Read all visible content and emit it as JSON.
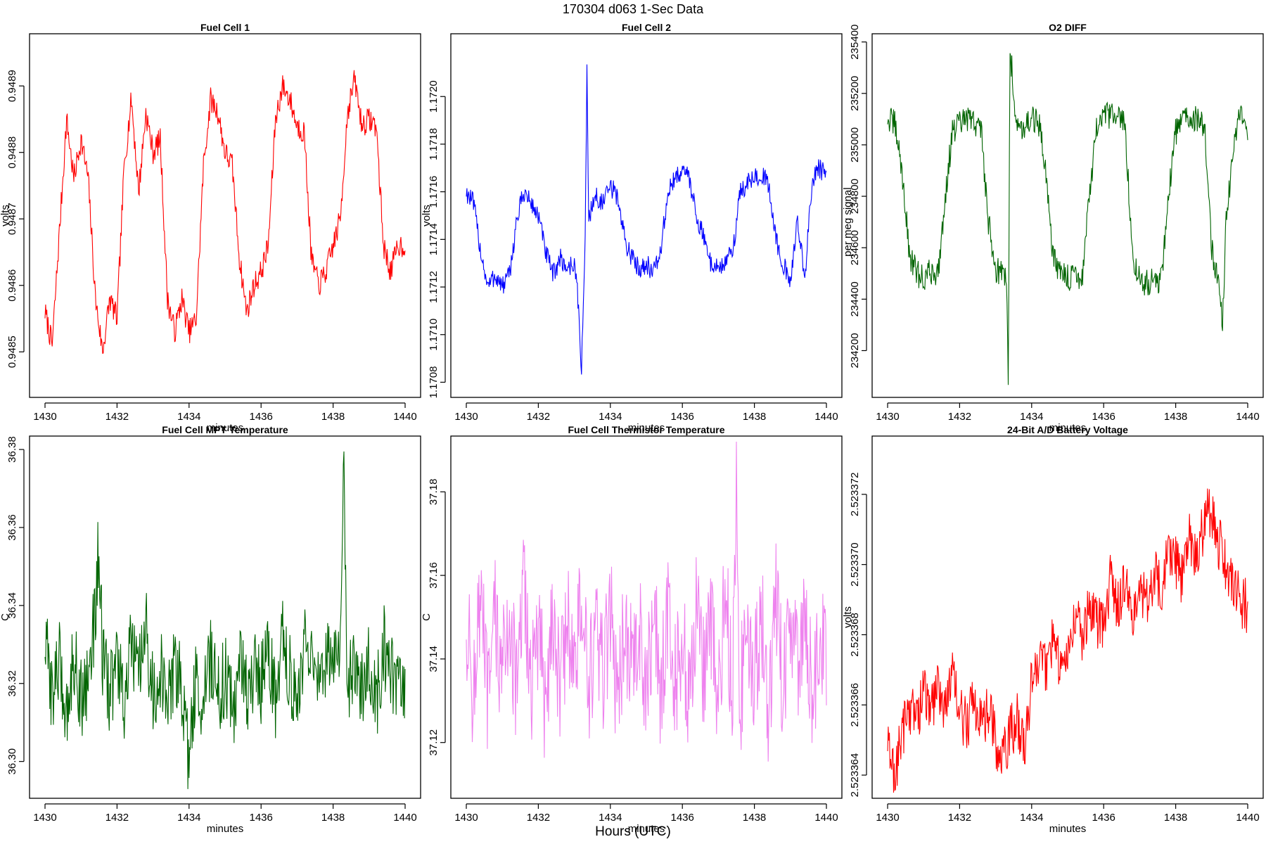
{
  "page": {
    "title": "170304   d063   1-Sec Data",
    "outer_xlabel": "Hours (UTC)"
  },
  "chart_data": [
    {
      "type": "line",
      "title": "Fuel Cell 1",
      "xlabel": "minutes",
      "ylabel": "volts",
      "color": "#ff0000",
      "xlim": [
        1430,
        1440
      ],
      "ylim": [
        0.94844,
        0.94897
      ],
      "xticks": [
        "1430",
        "1432",
        "1434",
        "1436",
        "1438",
        "1440"
      ],
      "yticks": [
        {
          "value": 0.9485,
          "label": "0.9485"
        },
        {
          "value": 0.9486,
          "label": "0.9486"
        },
        {
          "value": 0.9487,
          "label": "0.9487"
        },
        {
          "value": 0.9488,
          "label": "0.9488"
        },
        {
          "value": 0.9489,
          "label": "0.9489"
        }
      ],
      "series": [
        {
          "x": [
            1430.0,
            1430.2,
            1430.4,
            1430.6,
            1430.8,
            1431.0,
            1431.2,
            1431.4,
            1431.6,
            1431.8,
            1432.0,
            1432.2,
            1432.4,
            1432.6,
            1432.8,
            1433.0,
            1433.2,
            1433.4,
            1433.6,
            1433.8,
            1434.0,
            1434.2,
            1434.4,
            1434.6,
            1434.8,
            1435.0,
            1435.2,
            1435.4,
            1435.6,
            1435.8,
            1436.0,
            1436.2,
            1436.4,
            1436.6,
            1436.8,
            1437.0,
            1437.2,
            1437.4,
            1437.6,
            1437.8,
            1438.0,
            1438.2,
            1438.4,
            1438.6,
            1438.8,
            1439.0,
            1439.2,
            1439.4,
            1439.6,
            1439.8,
            1440.0
          ],
          "y": [
            0.94856,
            0.94851,
            0.94868,
            0.94885,
            0.94876,
            0.94882,
            0.94876,
            0.94858,
            0.9485,
            0.94858,
            0.94855,
            0.94878,
            0.94888,
            0.94874,
            0.94886,
            0.9488,
            0.94882,
            0.94858,
            0.94853,
            0.94858,
            0.94853,
            0.94855,
            0.94878,
            0.94888,
            0.94886,
            0.9488,
            0.94878,
            0.94864,
            0.94856,
            0.9486,
            0.94862,
            0.94866,
            0.94885,
            0.9489,
            0.94888,
            0.94884,
            0.94883,
            0.94864,
            0.9486,
            0.94862,
            0.94866,
            0.9487,
            0.94886,
            0.94891,
            0.94884,
            0.94885,
            0.94884,
            0.94866,
            0.94862,
            0.94866,
            0.94866
          ]
        }
      ]
    },
    {
      "type": "line",
      "title": "Fuel Cell 2",
      "xlabel": "minutes",
      "ylabel": "volts",
      "color": "#0000ff",
      "xlim": [
        1430,
        1440
      ],
      "ylim": [
        1.17076,
        1.17224
      ],
      "xticks": [
        "1430",
        "1432",
        "1434",
        "1436",
        "1438",
        "1440"
      ],
      "yticks": [
        {
          "value": 1.1708,
          "label": "1.1708"
        },
        {
          "value": 1.171,
          "label": "1.1710"
        },
        {
          "value": 1.1712,
          "label": "1.1712"
        },
        {
          "value": 1.1714,
          "label": "1.1714"
        },
        {
          "value": 1.1716,
          "label": "1.1716"
        },
        {
          "value": 1.1718,
          "label": "1.1718"
        },
        {
          "value": 1.172,
          "label": "1.1720"
        }
      ],
      "series": [
        {
          "x": [
            1430.0,
            1430.2,
            1430.4,
            1430.6,
            1430.8,
            1431.0,
            1431.2,
            1431.4,
            1431.6,
            1431.8,
            1432.0,
            1432.2,
            1432.4,
            1432.6,
            1432.8,
            1433.0,
            1433.1,
            1433.2,
            1433.3,
            1433.35,
            1433.4,
            1433.6,
            1433.8,
            1434.0,
            1434.2,
            1434.4,
            1434.6,
            1434.8,
            1435.0,
            1435.2,
            1435.4,
            1435.6,
            1435.8,
            1436.0,
            1436.2,
            1436.4,
            1436.6,
            1436.8,
            1437.0,
            1437.2,
            1437.4,
            1437.6,
            1437.8,
            1438.0,
            1438.2,
            1438.4,
            1438.6,
            1438.8,
            1439.0,
            1439.2,
            1439.4,
            1439.6,
            1439.8,
            1440.0
          ],
          "y": [
            1.1716,
            1.17155,
            1.17135,
            1.1712,
            1.17125,
            1.1712,
            1.17125,
            1.17148,
            1.1716,
            1.17155,
            1.1715,
            1.17135,
            1.17125,
            1.17132,
            1.17128,
            1.1713,
            1.17115,
            1.17085,
            1.1714,
            1.1721,
            1.1715,
            1.17158,
            1.17155,
            1.17162,
            1.17158,
            1.1714,
            1.17132,
            1.17128,
            1.1713,
            1.17126,
            1.17135,
            1.1716,
            1.17165,
            1.1717,
            1.17165,
            1.1715,
            1.1714,
            1.1713,
            1.17128,
            1.1713,
            1.17135,
            1.1716,
            1.17163,
            1.17166,
            1.17168,
            1.17162,
            1.1714,
            1.1713,
            1.1712,
            1.1715,
            1.17122,
            1.17165,
            1.1717,
            1.17166
          ]
        }
      ]
    },
    {
      "type": "line",
      "title": "O2 DIFF",
      "xlabel": "minutes",
      "ylabel": "per meg signal",
      "color": "#006400",
      "xlim": [
        1430,
        1440
      ],
      "ylim": [
        234040,
        235410
      ],
      "xticks": [
        "1430",
        "1432",
        "1434",
        "1436",
        "1438",
        "1440"
      ],
      "yticks": [
        {
          "value": 234200,
          "label": "234200"
        },
        {
          "value": 234400,
          "label": "234400"
        },
        {
          "value": 234600,
          "label": "234600"
        },
        {
          "value": 234800,
          "label": "234800"
        },
        {
          "value": 235000,
          "label": "235000"
        },
        {
          "value": 235200,
          "label": "235200"
        },
        {
          "value": 235400,
          "label": "235400"
        }
      ],
      "series": [
        {
          "x": [
            1430.0,
            1430.2,
            1430.4,
            1430.6,
            1430.8,
            1431.0,
            1431.2,
            1431.4,
            1431.6,
            1431.8,
            1432.0,
            1432.2,
            1432.4,
            1432.6,
            1432.8,
            1433.0,
            1433.2,
            1433.3,
            1433.35,
            1433.4,
            1433.6,
            1433.8,
            1434.0,
            1434.2,
            1434.4,
            1434.6,
            1434.8,
            1435.0,
            1435.2,
            1435.4,
            1435.6,
            1435.8,
            1436.0,
            1436.2,
            1436.4,
            1436.6,
            1436.8,
            1437.0,
            1437.2,
            1437.4,
            1437.6,
            1437.8,
            1438.0,
            1438.2,
            1438.4,
            1438.6,
            1438.8,
            1439.0,
            1439.2,
            1439.3,
            1439.4,
            1439.6,
            1439.8,
            1440.0
          ],
          "y": [
            235100,
            235080,
            234900,
            234580,
            234500,
            234480,
            234510,
            234500,
            234800,
            235050,
            235080,
            235100,
            235090,
            235060,
            234700,
            234520,
            234500,
            234480,
            234110,
            235370,
            235060,
            235080,
            235100,
            235080,
            234900,
            234560,
            234500,
            234480,
            234500,
            234480,
            234800,
            235050,
            235100,
            235120,
            235100,
            235080,
            234560,
            234480,
            234460,
            234470,
            234480,
            234800,
            235050,
            235100,
            235120,
            235090,
            235080,
            234600,
            234460,
            234280,
            234700,
            235000,
            235120,
            235050
          ]
        }
      ]
    },
    {
      "type": "line",
      "title": "Fuel Cell MPT Temperature",
      "xlabel": "minutes",
      "ylabel": "C",
      "color": "#006400",
      "xlim": [
        1430,
        1440
      ],
      "ylim": [
        36.292,
        36.382
      ],
      "xticks": [
        "1430",
        "1432",
        "1434",
        "1436",
        "1438",
        "1440"
      ],
      "yticks": [
        {
          "value": 36.3,
          "label": "36.30"
        },
        {
          "value": 36.32,
          "label": "36.32"
        },
        {
          "value": 36.34,
          "label": "36.34"
        },
        {
          "value": 36.36,
          "label": "36.36"
        },
        {
          "value": 36.38,
          "label": "36.38"
        }
      ],
      "series": [
        {
          "x": [
            1430.0,
            1430.2,
            1430.4,
            1430.6,
            1430.8,
            1431.0,
            1431.2,
            1431.4,
            1431.5,
            1431.6,
            1431.8,
            1432.0,
            1432.2,
            1432.4,
            1432.6,
            1432.8,
            1433.0,
            1433.2,
            1433.4,
            1433.6,
            1433.8,
            1434.0,
            1434.2,
            1434.4,
            1434.6,
            1434.8,
            1435.0,
            1435.2,
            1435.4,
            1435.6,
            1435.8,
            1436.0,
            1436.2,
            1436.4,
            1436.6,
            1436.8,
            1437.0,
            1437.2,
            1437.4,
            1437.6,
            1437.8,
            1438.0,
            1438.2,
            1438.3,
            1438.4,
            1438.6,
            1438.8,
            1439.0,
            1439.2,
            1439.4,
            1439.6,
            1439.8,
            1440.0
          ],
          "y": [
            36.33,
            36.318,
            36.325,
            36.312,
            36.328,
            36.316,
            36.322,
            36.338,
            36.358,
            36.324,
            36.318,
            36.326,
            36.314,
            36.33,
            36.32,
            36.334,
            36.316,
            36.324,
            36.312,
            36.326,
            36.318,
            36.3,
            36.322,
            36.314,
            36.328,
            36.316,
            36.322,
            36.312,
            36.326,
            36.318,
            36.324,
            36.32,
            36.328,
            36.316,
            36.334,
            36.322,
            36.318,
            36.33,
            36.324,
            36.318,
            36.326,
            36.322,
            36.334,
            36.376,
            36.32,
            36.328,
            36.318,
            36.326,
            36.314,
            36.33,
            36.322,
            36.318,
            36.32
          ]
        }
      ]
    },
    {
      "type": "line",
      "title": "Fuel Cell Thermistor Temperature",
      "xlabel": "minutes",
      "ylabel": "C",
      "color": "#ee82ee",
      "xlim": [
        1430,
        1440
      ],
      "ylim": [
        37.108,
        37.192
      ],
      "xticks": [
        "1430",
        "1432",
        "1434",
        "1436",
        "1438",
        "1440"
      ],
      "yticks": [
        {
          "value": 37.12,
          "label": "37.12"
        },
        {
          "value": 37.14,
          "label": "37.14"
        },
        {
          "value": 37.16,
          "label": "37.16"
        },
        {
          "value": 37.18,
          "label": "37.18"
        }
      ],
      "series": [
        {
          "x": [
            1430.0,
            1430.2,
            1430.4,
            1430.6,
            1430.8,
            1431.0,
            1431.2,
            1431.4,
            1431.6,
            1431.8,
            1432.0,
            1432.2,
            1432.4,
            1432.6,
            1432.8,
            1433.0,
            1433.2,
            1433.4,
            1433.6,
            1433.8,
            1434.0,
            1434.2,
            1434.4,
            1434.6,
            1434.8,
            1435.0,
            1435.2,
            1435.4,
            1435.6,
            1435.8,
            1436.0,
            1436.2,
            1436.4,
            1436.6,
            1436.8,
            1437.0,
            1437.2,
            1437.4,
            1437.5,
            1437.6,
            1437.8,
            1438.0,
            1438.2,
            1438.4,
            1438.6,
            1438.8,
            1439.0,
            1439.2,
            1439.4,
            1439.6,
            1439.8,
            1440.0
          ],
          "y": [
            37.148,
            37.132,
            37.155,
            37.128,
            37.15,
            37.136,
            37.152,
            37.13,
            37.158,
            37.134,
            37.146,
            37.128,
            37.154,
            37.132,
            37.15,
            37.136,
            37.156,
            37.13,
            37.148,
            37.134,
            37.152,
            37.128,
            37.15,
            37.136,
            37.146,
            37.13,
            37.154,
            37.132,
            37.15,
            37.134,
            37.146,
            37.128,
            37.152,
            37.136,
            37.148,
            37.13,
            37.156,
            37.132,
            37.186,
            37.13,
            37.15,
            37.136,
            37.152,
            37.128,
            37.154,
            37.132,
            37.148,
            37.136,
            37.152,
            37.13,
            37.146,
            37.14
          ]
        }
      ]
    },
    {
      "type": "line",
      "title": "24-Bit A/D Battery Voltage",
      "xlabel": "minutes",
      "ylabel": "volts",
      "color": "#ff0000",
      "xlim": [
        1430,
        1440
      ],
      "ylim": [
        2.5233635,
        2.5233735
      ],
      "xticks": [
        "1430",
        "1432",
        "1434",
        "1436",
        "1438",
        "1440"
      ],
      "yticks": [
        {
          "value": 2.523364,
          "label": "2.523364"
        },
        {
          "value": 2.523366,
          "label": "2.523366"
        },
        {
          "value": 2.523368,
          "label": "2.523368"
        },
        {
          "value": 2.52337,
          "label": "2.523370"
        },
        {
          "value": 2.523372,
          "label": "2.523372"
        }
      ],
      "series": [
        {
          "x": [
            1430.0,
            1430.2,
            1430.4,
            1430.6,
            1430.8,
            1431.0,
            1431.2,
            1431.4,
            1431.6,
            1431.8,
            1432.0,
            1432.2,
            1432.4,
            1432.6,
            1432.8,
            1433.0,
            1433.2,
            1433.4,
            1433.6,
            1433.8,
            1434.0,
            1434.2,
            1434.4,
            1434.6,
            1434.8,
            1435.0,
            1435.2,
            1435.4,
            1435.6,
            1435.8,
            1436.0,
            1436.2,
            1436.4,
            1436.6,
            1436.8,
            1437.0,
            1437.2,
            1437.4,
            1437.6,
            1437.8,
            1438.0,
            1438.2,
            1438.4,
            1438.6,
            1438.8,
            1439.0,
            1439.2,
            1439.4,
            1439.6,
            1439.8,
            1440.0
          ],
          "y": [
            2.5233648,
            2.523364,
            2.5233652,
            2.523366,
            2.5233656,
            2.5233664,
            2.5233658,
            2.5233666,
            2.523366,
            2.5233668,
            2.5233658,
            2.5233654,
            2.5233662,
            2.5233656,
            2.5233658,
            2.523365,
            2.5233644,
            2.5233652,
            2.5233656,
            2.5233648,
            2.5233666,
            2.5233674,
            2.523367,
            2.5233678,
            2.5233672,
            2.5233676,
            2.5233686,
            2.523368,
            2.5233688,
            2.5233684,
            2.5233682,
            2.5233696,
            2.5233688,
            2.5233694,
            2.5233686,
            2.5233692,
            2.523369,
            2.5233698,
            2.5233694,
            2.5233704,
            2.52337,
            2.5233696,
            2.5233708,
            2.5233702,
            2.5233712,
            2.5233716,
            2.5233706,
            2.52337,
            2.5233694,
            2.523369,
            2.5233688
          ]
        }
      ]
    }
  ]
}
